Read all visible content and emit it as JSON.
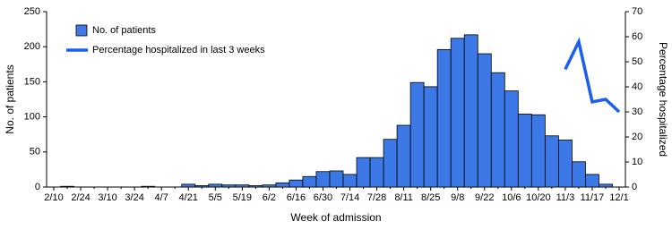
{
  "chart_data": {
    "type": "bar",
    "categories": [
      "2/10",
      null,
      "2/24",
      null,
      "3/10",
      null,
      "3/24",
      null,
      "4/7",
      null,
      "4/21",
      null,
      "5/5",
      null,
      "5/19",
      null,
      "6/2",
      null,
      "6/16",
      null,
      "6/30",
      null,
      "7/14",
      null,
      "7/28",
      null,
      "8/11",
      null,
      "8/25",
      null,
      "9/8",
      null,
      "9/22",
      null,
      "10/6",
      null,
      "10/20",
      null,
      "11/3",
      null,
      "11/17",
      null,
      "12/1"
    ],
    "series": [
      {
        "name": "No. of patients",
        "type": "bar",
        "color": "#3d79e6",
        "values": [
          0,
          1,
          0,
          0,
          0,
          0,
          0,
          1,
          0,
          0,
          4,
          2,
          4,
          3,
          3,
          2,
          3,
          6,
          10,
          15,
          22,
          23,
          18,
          42,
          42,
          68,
          88,
          149,
          143,
          196,
          212,
          217,
          190,
          163,
          137,
          104,
          103,
          73,
          67,
          36,
          18,
          4,
          0
        ]
      },
      {
        "name": "Percentage hospitalized in last 3 weeks",
        "type": "line",
        "axis": "y2",
        "color": "#1a5ef0",
        "values": [
          null,
          null,
          null,
          null,
          null,
          null,
          null,
          null,
          null,
          null,
          null,
          null,
          null,
          null,
          null,
          null,
          null,
          null,
          null,
          null,
          null,
          null,
          null,
          null,
          null,
          null,
          null,
          null,
          null,
          null,
          null,
          null,
          null,
          null,
          null,
          null,
          null,
          null,
          47,
          58,
          34,
          35,
          30
        ]
      }
    ],
    "x_label": "Week of admission",
    "y_label": "No. of patients",
    "y2_label": "Percentage hospitalized",
    "ylim": [
      0,
      250
    ],
    "yticks": [
      0,
      50,
      100,
      150,
      200,
      250
    ],
    "y2lim": [
      0,
      70
    ],
    "y2ticks": [
      0,
      10,
      20,
      30,
      40,
      50,
      60,
      70
    ],
    "legend": "upper left"
  }
}
